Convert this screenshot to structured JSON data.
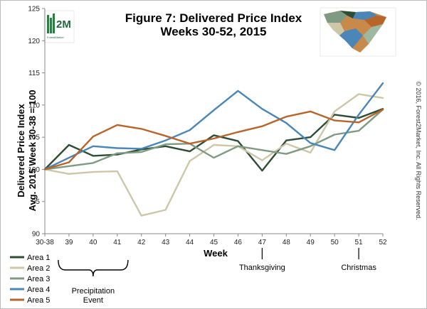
{
  "chart_data": {
    "type": "line",
    "title": "Figure 7: Delivered Price Index",
    "subtitle": "Weeks 30-52, 2015",
    "ylabel": [
      "Delivered Price Index",
      "Avg. 2015 Week 30-38 = 100"
    ],
    "xlabel": "Week",
    "ylim": [
      90,
      125
    ],
    "yticks": [
      90,
      95,
      100,
      105,
      110,
      115,
      120,
      125
    ],
    "categories": [
      "30-38",
      "39",
      "40",
      "41",
      "42",
      "43",
      "44",
      "45",
      "46",
      "47",
      "48",
      "49",
      "50",
      "51",
      "52"
    ],
    "grid": false,
    "legend_position": "bottom-left",
    "series": [
      {
        "name": "Area 1",
        "color": "#2e4d35",
        "values": [
          100,
          103.8,
          102.1,
          102.3,
          103.1,
          103.6,
          102.8,
          105.3,
          104.4,
          99.8,
          104.5,
          105.0,
          108.5,
          108.0,
          109.4
        ]
      },
      {
        "name": "Area 2",
        "color": "#cdc7a8",
        "values": [
          100,
          99.3,
          99.6,
          99.7,
          92.8,
          93.7,
          101.3,
          103.8,
          103.6,
          101.4,
          104.0,
          102.6,
          109.0,
          111.7,
          111.1
        ]
      },
      {
        "name": "Area 3",
        "color": "#7f9a82",
        "values": [
          100,
          100.5,
          101.0,
          102.5,
          102.7,
          103.9,
          104.0,
          101.8,
          103.6,
          103.0,
          102.4,
          103.6,
          105.4,
          106.0,
          109.3
        ]
      },
      {
        "name": "Area 4",
        "color": "#4a86b8",
        "values": [
          100,
          101.8,
          103.6,
          103.3,
          103.2,
          104.5,
          106.1,
          109.2,
          112.2,
          109.4,
          107.2,
          104.1,
          103.0,
          108.5,
          113.4
        ]
      },
      {
        "name": "Area 5",
        "color": "#b7652a",
        "values": [
          100,
          101.1,
          105.1,
          106.9,
          106.3,
          105.2,
          104.0,
          104.8,
          105.8,
          106.7,
          108.2,
          109.0,
          107.6,
          107.3,
          109.3
        ]
      }
    ],
    "annotations": [
      {
        "category": "40",
        "lines": [
          "Precipitation",
          "Event"
        ],
        "marker": "brace"
      },
      {
        "category": "47",
        "lines": [
          "Thanksgiving"
        ],
        "marker": "tick"
      },
      {
        "category": "51",
        "lines": [
          "Christmas"
        ],
        "marker": "tick"
      }
    ]
  },
  "logo": {
    "text": "ForestMarket"
  },
  "copyright": "© 2016, Forest2Market, Inc. All Rights Reserved."
}
